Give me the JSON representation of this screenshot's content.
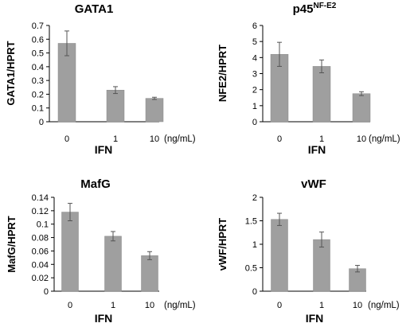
{
  "chart_data": [
    {
      "type": "bar",
      "title": "GATA1",
      "title_sup": "",
      "ylabel": "GATA1/HPRT",
      "xlabel": "IFN",
      "unit": "(ng/mL)",
      "categories": [
        "0",
        "1",
        "10"
      ],
      "values": [
        0.57,
        0.23,
        0.17
      ],
      "errors": [
        0.09,
        0.025,
        0.008
      ],
      "ylim": [
        0,
        0.7
      ],
      "yticks": [
        0,
        0.1,
        0.2,
        0.3,
        0.4,
        0.5,
        0.6,
        0.7
      ],
      "ytick_labels": [
        "0",
        "0.1",
        "0.2",
        "0.3",
        "0.4",
        "0.5",
        "0.6",
        "0.7"
      ],
      "bar_color": "#9f9f9f"
    },
    {
      "type": "bar",
      "title": "p45",
      "title_sup": "NF-E2",
      "ylabel": "NFE2/HPRT",
      "xlabel": "IFN",
      "unit": "(ng/mL)",
      "categories": [
        "0",
        "1",
        "10"
      ],
      "values": [
        4.2,
        3.45,
        1.75
      ],
      "errors": [
        0.75,
        0.4,
        0.12
      ],
      "ylim": [
        0,
        6
      ],
      "yticks": [
        0,
        1,
        2,
        3,
        4,
        5,
        6
      ],
      "ytick_labels": [
        "0",
        "1",
        "2",
        "3",
        "4",
        "5",
        "6"
      ],
      "bar_color": "#9f9f9f"
    },
    {
      "type": "bar",
      "title": "MafG",
      "title_sup": "",
      "ylabel": "MafG/HPRT",
      "xlabel": "IFN",
      "unit": "(ng/mL)",
      "categories": [
        "0",
        "1",
        "10"
      ],
      "values": [
        0.118,
        0.082,
        0.053
      ],
      "errors": [
        0.013,
        0.007,
        0.006
      ],
      "ylim": [
        0,
        0.14
      ],
      "yticks": [
        0,
        0.02,
        0.04,
        0.06,
        0.08,
        0.1,
        0.12,
        0.14
      ],
      "ytick_labels": [
        "0",
        "0.02",
        "0.04",
        "0.06",
        "0.08",
        "0.1",
        "0.12",
        "0.14"
      ],
      "bar_color": "#9f9f9f"
    },
    {
      "type": "bar",
      "title": "vWF",
      "title_sup": "",
      "ylabel": "vWF/HPRT",
      "xlabel": "IFN",
      "unit": "(ng/mL)",
      "categories": [
        "0",
        "1",
        "10"
      ],
      "values": [
        1.53,
        1.1,
        0.48
      ],
      "errors": [
        0.13,
        0.16,
        0.07
      ],
      "ylim": [
        0,
        2
      ],
      "yticks": [
        0,
        0.5,
        1,
        1.5,
        2
      ],
      "ytick_labels": [
        "0",
        "0.5",
        "1",
        "1.5",
        "2"
      ],
      "bar_color": "#9f9f9f"
    }
  ]
}
